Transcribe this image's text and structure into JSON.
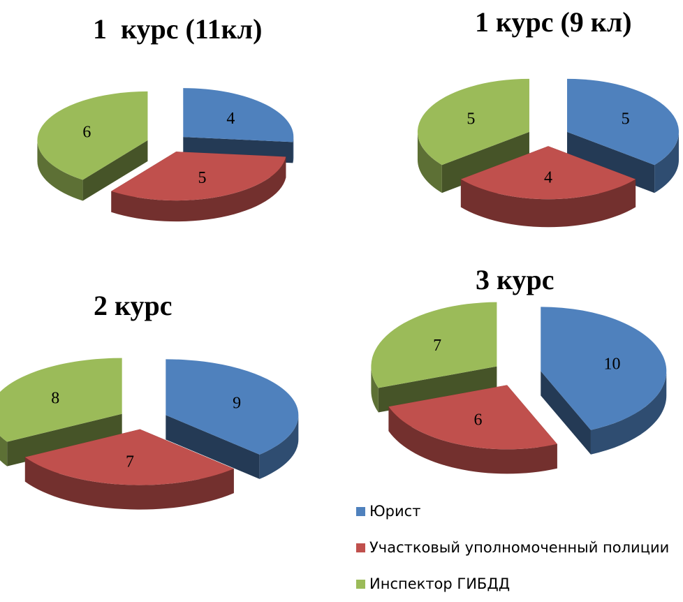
{
  "chart_data": [
    {
      "type": "pie",
      "title": "1  курс (11кл)",
      "categories": [
        "Юрист",
        "Участковый уполномоченный полиции",
        "Инспектор ГИБДД"
      ],
      "values": [
        4,
        5,
        6
      ],
      "style": "3d-exploded"
    },
    {
      "type": "pie",
      "title": "1 курс (9 кл)",
      "categories": [
        "Юрист",
        "Участковый уполномоченный полиции",
        "Инспектор ГИБДД"
      ],
      "values": [
        5,
        4,
        5
      ],
      "style": "3d-exploded"
    },
    {
      "type": "pie",
      "title": "2 курс",
      "categories": [
        "Юрист",
        "Участковый уполномоченный полиции",
        "Инспектор ГИБДД"
      ],
      "values": [
        9,
        7,
        8
      ],
      "style": "3d-exploded"
    },
    {
      "type": "pie",
      "title": "3 курс",
      "categories": [
        "Юрист",
        "Участковый уполномоченный полиции",
        "Инспектор ГИБДД"
      ],
      "values": [
        10,
        6,
        7
      ],
      "style": "3d-exploded"
    }
  ],
  "legend": {
    "placement": "bottom-right",
    "items": [
      {
        "label": "Юрист",
        "color": "#4f81bd"
      },
      {
        "label": "Участковый уполномоченный полиции",
        "color": "#c0504d"
      },
      {
        "label": "Инспектор ГИБДД",
        "color": "#9bbb59"
      }
    ]
  }
}
